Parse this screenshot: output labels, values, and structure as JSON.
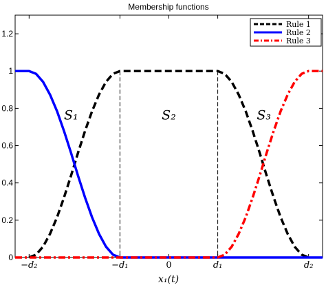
{
  "chart_data": {
    "type": "line",
    "title": "Membership functions",
    "xlabel": "x₁(t)",
    "ylabel": "",
    "ylim": [
      0,
      1.3
    ],
    "xlim": [
      -1.1,
      1.1
    ],
    "grid": false,
    "legend_position": "top-right",
    "x_ticks": [
      {
        "value": -1.0,
        "label": "−d₂"
      },
      {
        "value": -0.35,
        "label": "−d₁"
      },
      {
        "value": 0,
        "label": "0"
      },
      {
        "value": 0.35,
        "label": "d₁"
      },
      {
        "value": 1.0,
        "label": "d₂"
      }
    ],
    "y_ticks": [
      {
        "value": 0,
        "label": "0"
      },
      {
        "value": 0.2,
        "label": "0.2"
      },
      {
        "value": 0.4,
        "label": "0.4"
      },
      {
        "value": 0.6,
        "label": "0.6"
      },
      {
        "value": 0.8,
        "label": "0.8"
      },
      {
        "value": 1.0,
        "label": "1"
      },
      {
        "value": 1.2,
        "label": "1.2"
      }
    ],
    "reference_lines": [
      -0.35,
      0.35
    ],
    "region_labels": [
      {
        "text": "S₁",
        "x": -0.7,
        "y": 0.74
      },
      {
        "text": "S₂",
        "x": 0.0,
        "y": 0.74
      },
      {
        "text": "S₃",
        "x": 0.68,
        "y": 0.74
      }
    ],
    "series": [
      {
        "name": "Rule 1",
        "color": "#000000",
        "style": "dashed",
        "x": [
          -1.0,
          -0.95,
          -0.9,
          -0.85,
          -0.8,
          -0.75,
          -0.7,
          -0.65,
          -0.6,
          -0.55,
          -0.5,
          -0.45,
          -0.4,
          -0.35,
          0.35,
          0.4,
          0.45,
          0.5,
          0.55,
          0.6,
          0.65,
          0.7,
          0.75,
          0.8,
          0.85,
          0.9,
          0.95,
          1.0
        ],
        "y": [
          0,
          0.015,
          0.058,
          0.127,
          0.216,
          0.322,
          0.439,
          0.561,
          0.678,
          0.784,
          0.873,
          0.942,
          0.985,
          1.0,
          1.0,
          0.985,
          0.942,
          0.873,
          0.784,
          0.678,
          0.561,
          0.439,
          0.322,
          0.216,
          0.127,
          0.058,
          0.015,
          0
        ]
      },
      {
        "name": "Rule 2",
        "color": "#0000ff",
        "style": "solid",
        "x": [
          -1.1,
          -1.0,
          -0.95,
          -0.9,
          -0.85,
          -0.8,
          -0.75,
          -0.7,
          -0.65,
          -0.6,
          -0.55,
          -0.5,
          -0.45,
          -0.4,
          -0.35,
          1.1
        ],
        "y": [
          1.0,
          1.0,
          0.985,
          0.942,
          0.873,
          0.784,
          0.678,
          0.561,
          0.439,
          0.322,
          0.216,
          0.127,
          0.058,
          0.015,
          0,
          0
        ]
      },
      {
        "name": "Rule 3",
        "color": "#ff0000",
        "style": "dashdot",
        "x": [
          -1.1,
          0.35,
          0.4,
          0.45,
          0.5,
          0.55,
          0.6,
          0.65,
          0.7,
          0.75,
          0.8,
          0.85,
          0.9,
          0.95,
          1.0,
          1.1
        ],
        "y": [
          0,
          0,
          0.015,
          0.058,
          0.127,
          0.216,
          0.322,
          0.439,
          0.561,
          0.678,
          0.784,
          0.873,
          0.942,
          0.985,
          1.0,
          1.0
        ]
      }
    ]
  }
}
